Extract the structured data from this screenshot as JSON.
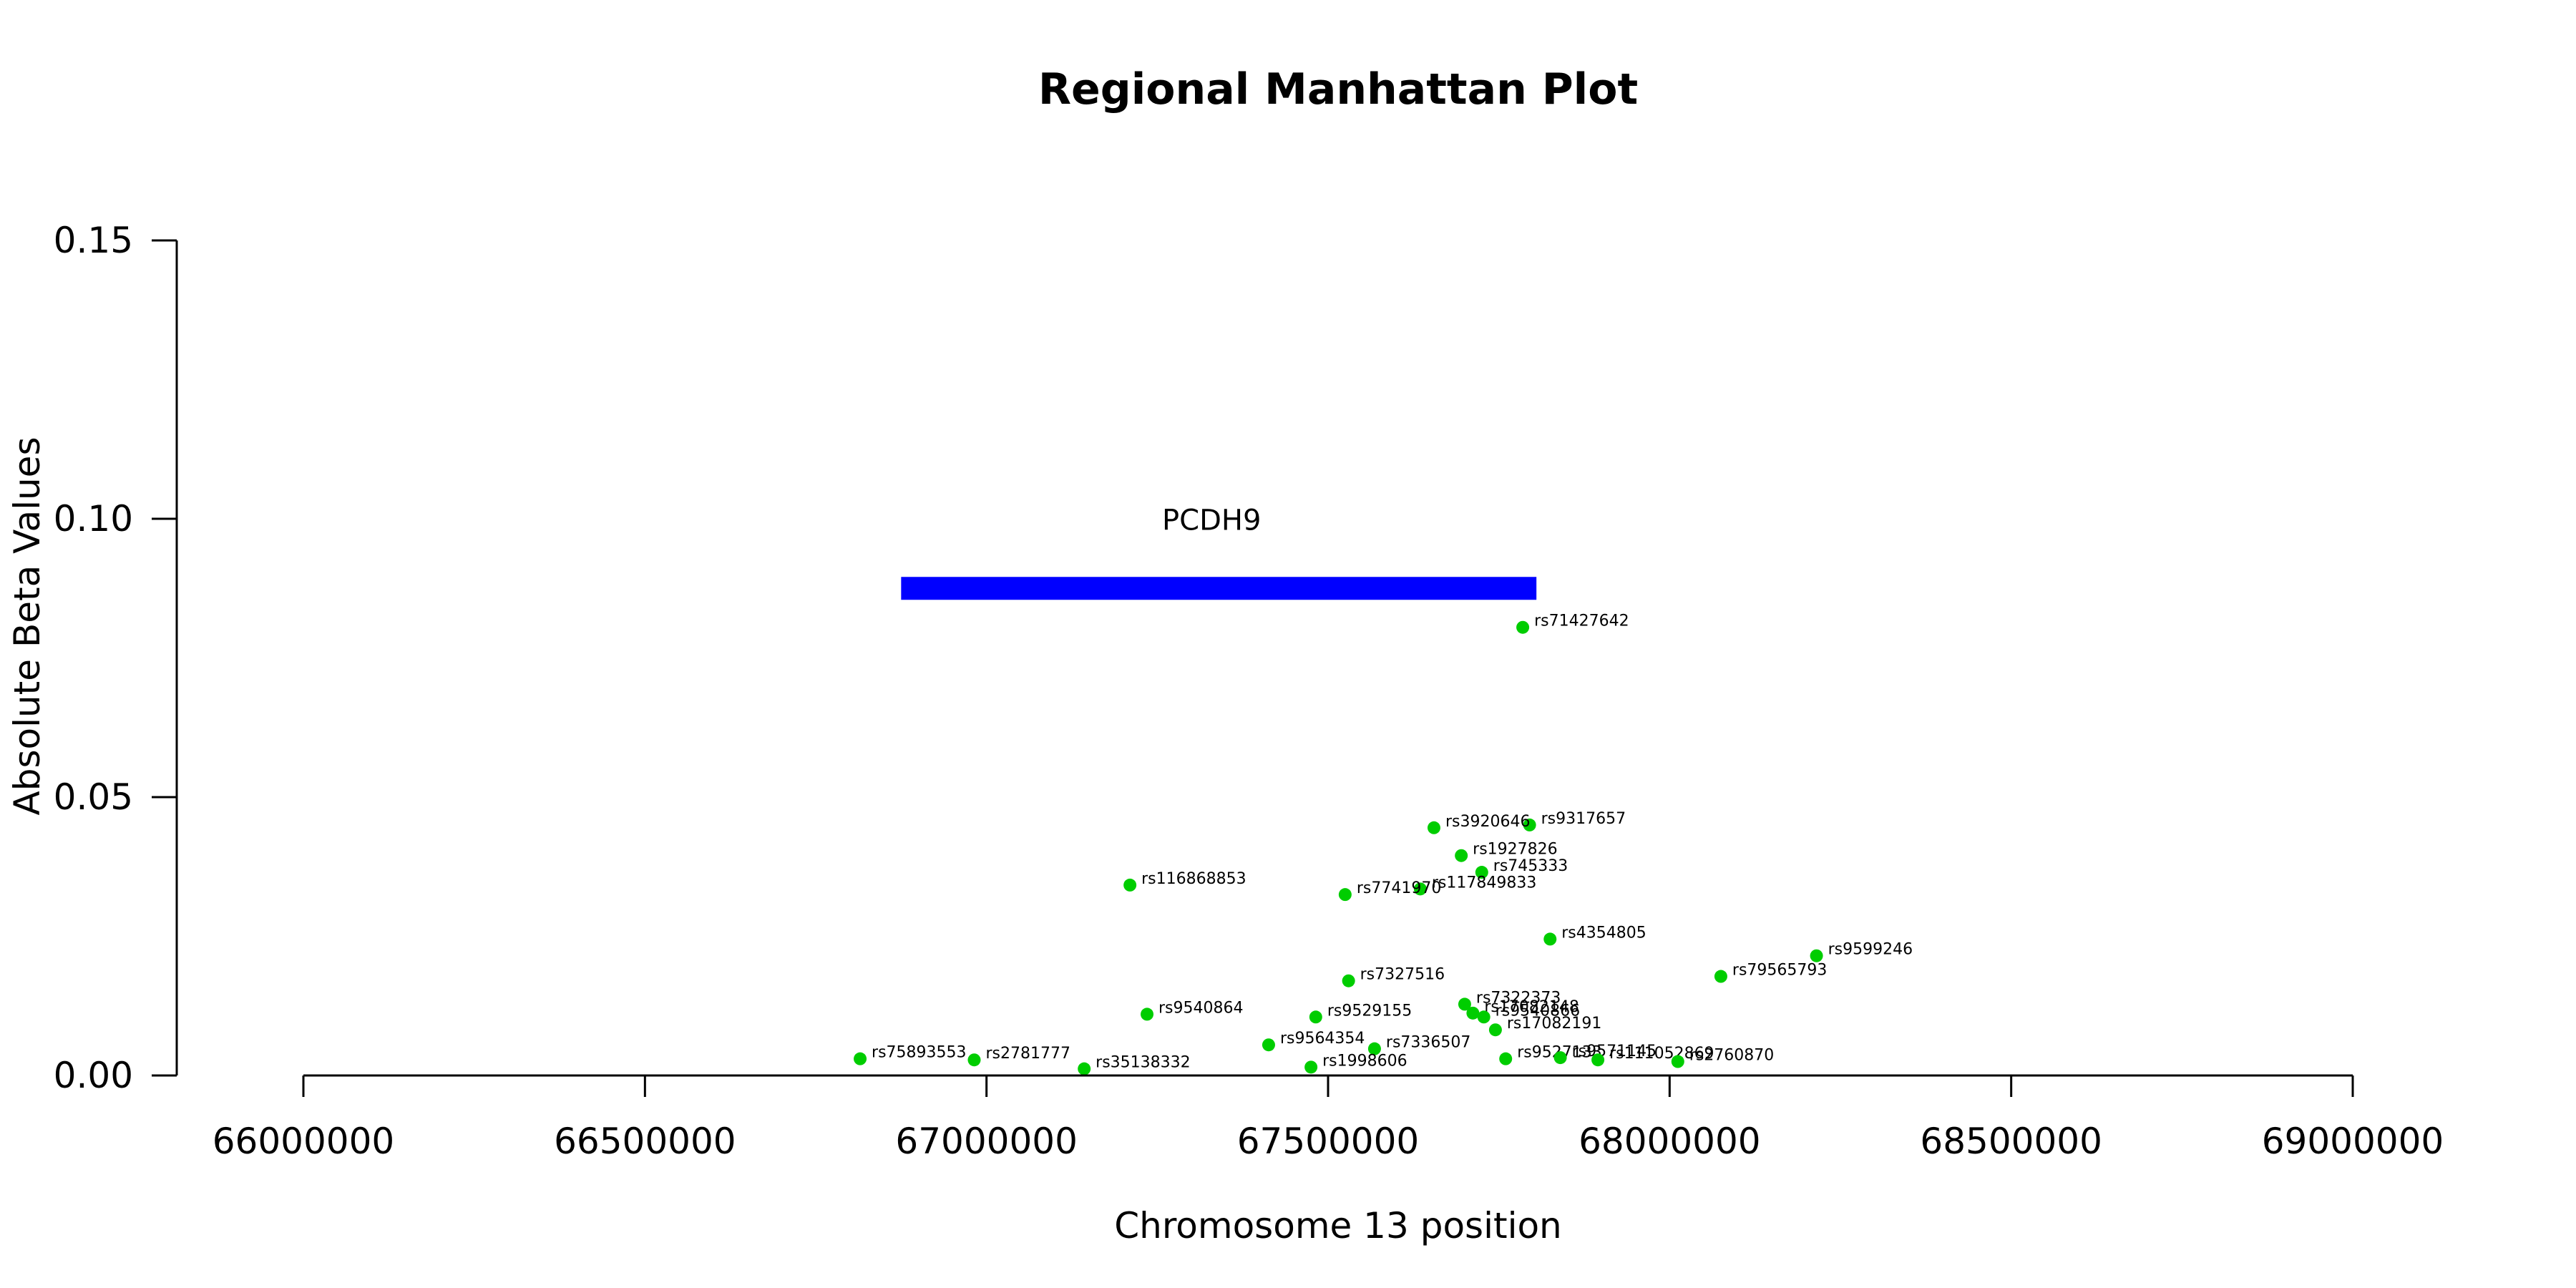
{
  "chart_data": {
    "type": "scatter",
    "title": "Regional Manhattan Plot",
    "xlabel": "Chromosome 13 position",
    "ylabel": "Absolute Beta Values",
    "xlim": [
      65815000,
      69140000
    ],
    "ylim": [
      0,
      0.15
    ],
    "x_ticks": [
      66000000,
      66500000,
      67000000,
      67500000,
      68000000,
      68500000,
      69000000
    ],
    "x_tick_labels": [
      "66000000",
      "66500000",
      "67000000",
      "67500000",
      "68000000",
      "68500000",
      "69000000"
    ],
    "y_ticks": [
      0.0,
      0.05,
      0.1,
      0.15
    ],
    "y_tick_labels": [
      "0.00",
      "0.05",
      "0.10",
      "0.15"
    ],
    "point_color": "#00CD00",
    "gene_color": "#0000FF",
    "genes": [
      {
        "name": "PCDH9",
        "start": 66875000,
        "end": 67805000,
        "y": 0.0875
      }
    ],
    "points": [
      {
        "id": "rs71427642",
        "x": 67785000,
        "y": 0.0805
      },
      {
        "id": "rs9317657",
        "x": 67795000,
        "y": 0.045
      },
      {
        "id": "rs3920646",
        "x": 67655000,
        "y": 0.0445
      },
      {
        "id": "rs1927826",
        "x": 67695000,
        "y": 0.0395
      },
      {
        "id": "rs745333",
        "x": 67725000,
        "y": 0.0365
      },
      {
        "id": "rs116868853",
        "x": 67210000,
        "y": 0.0342
      },
      {
        "id": "rs117849833",
        "x": 67635000,
        "y": 0.0335
      },
      {
        "id": "rs7741970",
        "x": 67525000,
        "y": 0.0325
      },
      {
        "id": "rs4354805",
        "x": 67825000,
        "y": 0.0245
      },
      {
        "id": "rs9599246",
        "x": 68215000,
        "y": 0.0215
      },
      {
        "id": "rs79565793",
        "x": 68075000,
        "y": 0.0178
      },
      {
        "id": "rs7327516",
        "x": 67530000,
        "y": 0.017
      },
      {
        "id": "rs17082191",
        "x": 67745000,
        "y": 0.0082
      },
      {
        "id": "rs7322373",
        "x": 67700000,
        "y": 0.0128
      },
      {
        "id": "rs17082148",
        "x": 67712000,
        "y": 0.0112
      },
      {
        "id": "rs9540866",
        "x": 67728000,
        "y": 0.0105
      },
      {
        "id": "rs9540864",
        "x": 67235000,
        "y": 0.011
      },
      {
        "id": "rs9529155",
        "x": 67482000,
        "y": 0.0105
      },
      {
        "id": "rs9564354",
        "x": 67413000,
        "y": 0.0055
      },
      {
        "id": "rs7336507",
        "x": 67568000,
        "y": 0.0048
      },
      {
        "id": "rs9527133",
        "x": 67760000,
        "y": 0.003
      },
      {
        "id": "rs9571145",
        "x": 67840000,
        "y": 0.0032
      },
      {
        "id": "rs111052869",
        "x": 67895000,
        "y": 0.0028
      },
      {
        "id": "rs2760870",
        "x": 68012000,
        "y": 0.0025
      },
      {
        "id": "rs75893553",
        "x": 66815000,
        "y": 0.003
      },
      {
        "id": "rs2781777",
        "x": 66982000,
        "y": 0.0028
      },
      {
        "id": "rs35138332",
        "x": 67143000,
        "y": 0.0012
      },
      {
        "id": "rs1998606",
        "x": 67475000,
        "y": 0.0015
      }
    ]
  }
}
